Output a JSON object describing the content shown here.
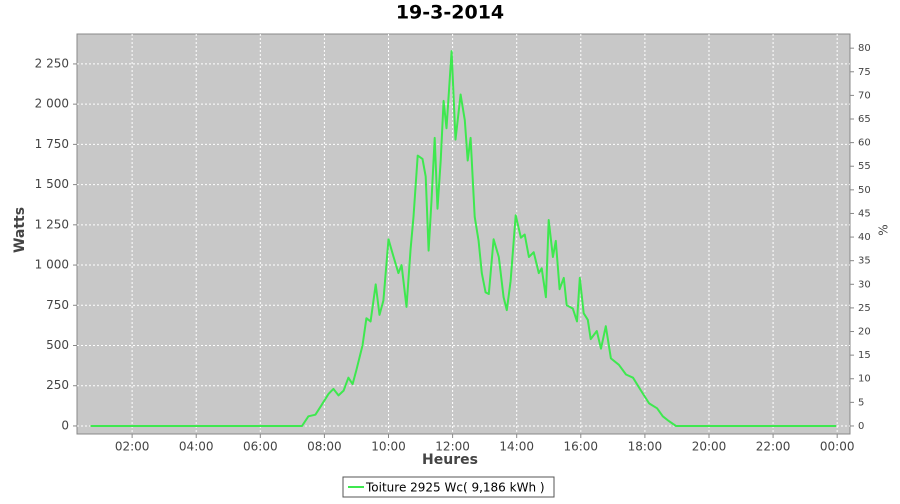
{
  "chart_data": {
    "type": "line",
    "title": "19-3-2014",
    "x_label": "Heures",
    "y_label": "Watts",
    "y2_label": "%",
    "xlim": [
      0.28,
      24.4
    ],
    "ylim": [
      -50,
      2436
    ],
    "y2lim": [
      -1.7,
      83
    ],
    "xticks": [
      {
        "value": 2,
        "label": "02:00"
      },
      {
        "value": 4,
        "label": "04:00"
      },
      {
        "value": 6,
        "label": "06:00"
      },
      {
        "value": 8,
        "label": "08:00"
      },
      {
        "value": 10,
        "label": "10:00"
      },
      {
        "value": 12,
        "label": "12:00"
      },
      {
        "value": 14,
        "label": "14:00"
      },
      {
        "value": 16,
        "label": "16:00"
      },
      {
        "value": 18,
        "label": "18:00"
      },
      {
        "value": 20,
        "label": "20:00"
      },
      {
        "value": 22,
        "label": "22:00"
      },
      {
        "value": 24,
        "label": "00:00"
      }
    ],
    "yticks": [
      0,
      250,
      500,
      750,
      {
        "value": 1000,
        "label": "1 000"
      },
      {
        "value": 1250,
        "label": "1 250"
      },
      {
        "value": 1500,
        "label": "1 500"
      },
      {
        "value": 1750,
        "label": "1 750"
      },
      {
        "value": 2000,
        "label": "2 000"
      },
      {
        "value": 2250,
        "label": "2 250"
      }
    ],
    "y2ticks": [
      0,
      5,
      10,
      15,
      20,
      25,
      30,
      35,
      40,
      45,
      50,
      55,
      60,
      65,
      70,
      75,
      80
    ],
    "grid": true,
    "legend": "bottom",
    "x": [
      0.7,
      7.3,
      7.5,
      7.72,
      7.88,
      8.13,
      8.28,
      8.44,
      8.6,
      8.75,
      8.88,
      9.0,
      9.19,
      9.31,
      9.44,
      9.6,
      9.72,
      9.84,
      10.0,
      10.16,
      10.31,
      10.41,
      10.56,
      10.69,
      10.78,
      10.91,
      11.06,
      11.16,
      11.25,
      11.34,
      11.44,
      11.53,
      11.63,
      11.72,
      11.81,
      11.97,
      12.09,
      12.25,
      12.38,
      12.47,
      12.56,
      12.69,
      12.81,
      12.91,
      13.03,
      13.13,
      13.28,
      13.44,
      13.59,
      13.69,
      13.81,
      13.97,
      14.13,
      14.25,
      14.38,
      14.53,
      14.69,
      14.78,
      14.91,
      15.0,
      15.13,
      15.22,
      15.34,
      15.47,
      15.56,
      15.75,
      15.88,
      15.97,
      16.09,
      16.22,
      16.31,
      16.5,
      16.63,
      16.78,
      16.94,
      17.19,
      17.41,
      17.63,
      17.88,
      18.13,
      18.38,
      18.56,
      18.75,
      18.97,
      23.97
    ],
    "series": [
      {
        "name": "Toiture 2925 Wc( 9,186 kWh )",
        "color": "#3ee84f",
        "values": [
          0,
          0,
          60,
          70,
          120,
          200,
          230,
          190,
          220,
          300,
          260,
          350,
          500,
          670,
          650,
          880,
          690,
          780,
          1160,
          1050,
          950,
          1000,
          740,
          1100,
          1300,
          1680,
          1660,
          1550,
          1090,
          1400,
          1790,
          1350,
          1650,
          2020,
          1850,
          2330,
          1780,
          2060,
          1900,
          1650,
          1790,
          1300,
          1150,
          950,
          830,
          820,
          1160,
          1050,
          800,
          720,
          900,
          1310,
          1170,
          1190,
          1050,
          1080,
          950,
          980,
          800,
          1280,
          1050,
          1150,
          850,
          920,
          750,
          730,
          650,
          920,
          700,
          660,
          540,
          590,
          480,
          620,
          420,
          380,
          320,
          300,
          220,
          140,
          110,
          60,
          30,
          0,
          0
        ]
      }
    ]
  }
}
